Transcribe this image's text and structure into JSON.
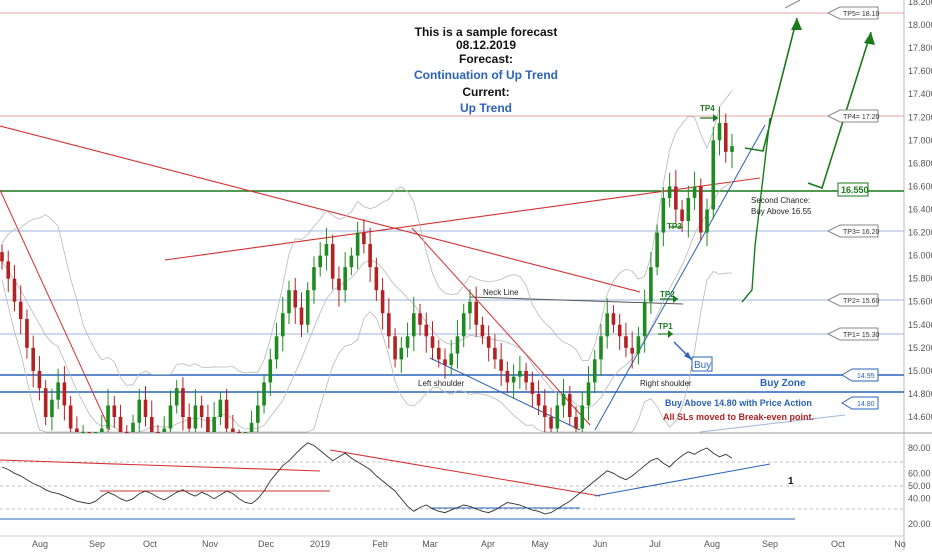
{
  "header": {
    "line1": "This is a sample forecast",
    "line2": "08.12.2019",
    "line3": "Forecast:",
    "line4": "Continuation of Up Trend",
    "line5": "Current:",
    "line6": "Up Trend"
  },
  "levels": {
    "tp5": "TP5= 18.10",
    "tp4": "TP4= 17.20",
    "tp3": "TP3= 16.20",
    "tp2": "TP2= 15.60",
    "tp1": "TP1= 15.30",
    "zone_top": "14.95",
    "zone_bottom": "14.80",
    "resistance": "16.550"
  },
  "annotations": {
    "tp4": "TP4",
    "tp3": "TP3",
    "tp2": "TP2",
    "tp1": "TP1",
    "buy": "Buy",
    "neck_line": "Neck Line",
    "left_shoulder": "Left shoulder",
    "right_shoulder": "Right shoulder",
    "buy_zone": "Buy Zone",
    "second_chance_1": "Second Chance:",
    "second_chance_2": "Buy Above 16.55",
    "buy_above": "Buy Above 14.80 with Price Action",
    "sl_note": "All SLs moved to Break-even point.",
    "osc_1": "1"
  },
  "colors": {
    "up_candle": "#1f8a1f",
    "down_candle": "#b22222",
    "blue": "#2962b8",
    "green": "#1a7a1a",
    "red": "#d23030"
  },
  "chart_data": [
    {
      "type": "candlestick",
      "y_ticks": [
        "18.200",
        "18.000",
        "17.800",
        "17.600",
        "17.400",
        "17.200",
        "17.000",
        "16.800",
        "16.600",
        "16.400",
        "16.200",
        "16.000",
        "15.800",
        "15.600",
        "15.400",
        "15.200",
        "15.000",
        "14.800",
        "14.600"
      ],
      "x_ticks": [
        "Aug",
        "Sep",
        "Oct",
        "Nov",
        "Dec",
        "2019",
        "Feb",
        "Mar",
        "Apr",
        "May",
        "Jun",
        "Jul",
        "Aug",
        "Sep",
        "Oct",
        "No"
      ],
      "ylim": [
        14.45,
        18.25
      ],
      "horizontal_levels": [
        18.1,
        17.2,
        16.55,
        16.2,
        15.6,
        15.3,
        14.95,
        14.8
      ],
      "close": [
        15.95,
        15.8,
        15.6,
        15.45,
        15.2,
        15.0,
        14.85,
        14.6,
        14.75,
        14.9,
        14.7,
        14.5,
        14.35,
        14.4,
        14.2,
        14.3,
        14.5,
        14.7,
        14.6,
        14.4,
        14.3,
        14.55,
        14.75,
        14.6,
        14.45,
        14.3,
        14.5,
        14.7,
        14.85,
        14.6,
        14.5,
        14.7,
        14.6,
        14.4,
        14.6,
        14.75,
        14.5,
        14.35,
        14.2,
        14.35,
        14.55,
        14.7,
        14.9,
        15.1,
        15.3,
        15.5,
        15.7,
        15.55,
        15.4,
        15.7,
        15.9,
        16.0,
        16.1,
        15.8,
        15.7,
        15.9,
        16.0,
        16.2,
        16.1,
        15.9,
        15.7,
        15.5,
        15.3,
        15.1,
        15.2,
        15.3,
        15.5,
        15.4,
        15.3,
        15.2,
        15.1,
        15.05,
        15.15,
        15.3,
        15.5,
        15.6,
        15.4,
        15.3,
        15.2,
        15.1,
        15.0,
        14.9,
        14.95,
        15.0,
        14.9,
        14.8,
        14.7,
        14.6,
        14.5,
        14.7,
        14.8,
        14.6,
        14.5,
        14.7,
        14.9,
        15.1,
        15.3,
        15.5,
        15.4,
        15.3,
        15.2,
        15.15,
        15.3,
        15.6,
        15.9,
        16.2,
        16.5,
        16.6,
        16.4,
        16.3,
        16.5,
        16.6,
        16.2,
        16.4,
        17.0,
        17.15,
        16.9,
        16.95
      ]
    },
    {
      "type": "line",
      "y_ticks": [
        "80.00",
        "60.00",
        "50.00",
        "40.00",
        "20.00"
      ],
      "ylim": [
        15,
        92
      ],
      "horizontal_levels": [
        70,
        50,
        30
      ],
      "values": [
        65,
        63,
        60,
        58,
        55,
        52,
        50,
        47,
        45,
        44,
        42,
        40,
        38,
        37,
        36,
        38,
        42,
        45,
        43,
        40,
        38,
        40,
        44,
        46,
        44,
        41,
        39,
        42,
        45,
        47,
        44,
        42,
        45,
        43,
        40,
        43,
        46,
        44,
        40,
        37,
        36,
        40,
        46,
        54,
        60,
        66,
        70,
        75,
        80,
        84,
        82,
        78,
        74,
        70,
        73,
        76,
        72,
        69,
        66,
        63,
        58,
        54,
        50,
        46,
        40,
        34,
        30,
        33,
        35,
        32,
        30,
        29,
        31,
        33,
        35,
        34,
        32,
        30,
        29,
        31,
        34,
        37,
        36,
        35,
        33,
        31,
        30,
        28,
        29,
        32,
        35,
        38,
        42,
        46,
        50,
        54,
        58,
        62,
        60,
        57,
        55,
        58,
        62,
        66,
        70,
        72,
        68,
        65,
        70,
        74,
        77,
        75,
        78,
        80,
        76,
        73,
        75,
        72
      ],
      "trendline_label": "1"
    }
  ]
}
